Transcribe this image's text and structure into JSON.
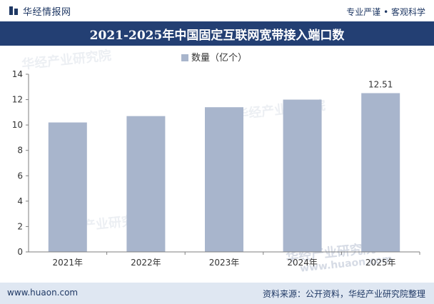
{
  "header": {
    "brand_name": "华经情报网",
    "tagline": "专业严谨 • 客观科学"
  },
  "title": "2021-2025年中国固定互联网宽带接入端口数",
  "footer": {
    "url": "www.huaon.com",
    "source": "资料来源：公开资料，华经产业研究院整理"
  },
  "watermarks": {
    "cn": "华经产业研究院",
    "url": "www.huaon.com"
  },
  "colors": {
    "title_bar": "#233f73",
    "bar": "#a8b5cc",
    "axis": "#7f7f7f"
  },
  "chart_data": {
    "type": "bar",
    "categories": [
      "2021年",
      "2022年",
      "2023年",
      "2024年",
      "2025年"
    ],
    "series": [
      {
        "name": "数量（亿个）",
        "values": [
          10.2,
          10.7,
          11.4,
          12.0,
          12.51
        ]
      }
    ],
    "data_labels": {
      "2025年": "12.51"
    },
    "yticks": [
      0,
      2,
      4,
      6,
      8,
      10,
      12,
      14
    ],
    "ylim": [
      0,
      14
    ],
    "legend_position": "top-center",
    "grid": false
  }
}
